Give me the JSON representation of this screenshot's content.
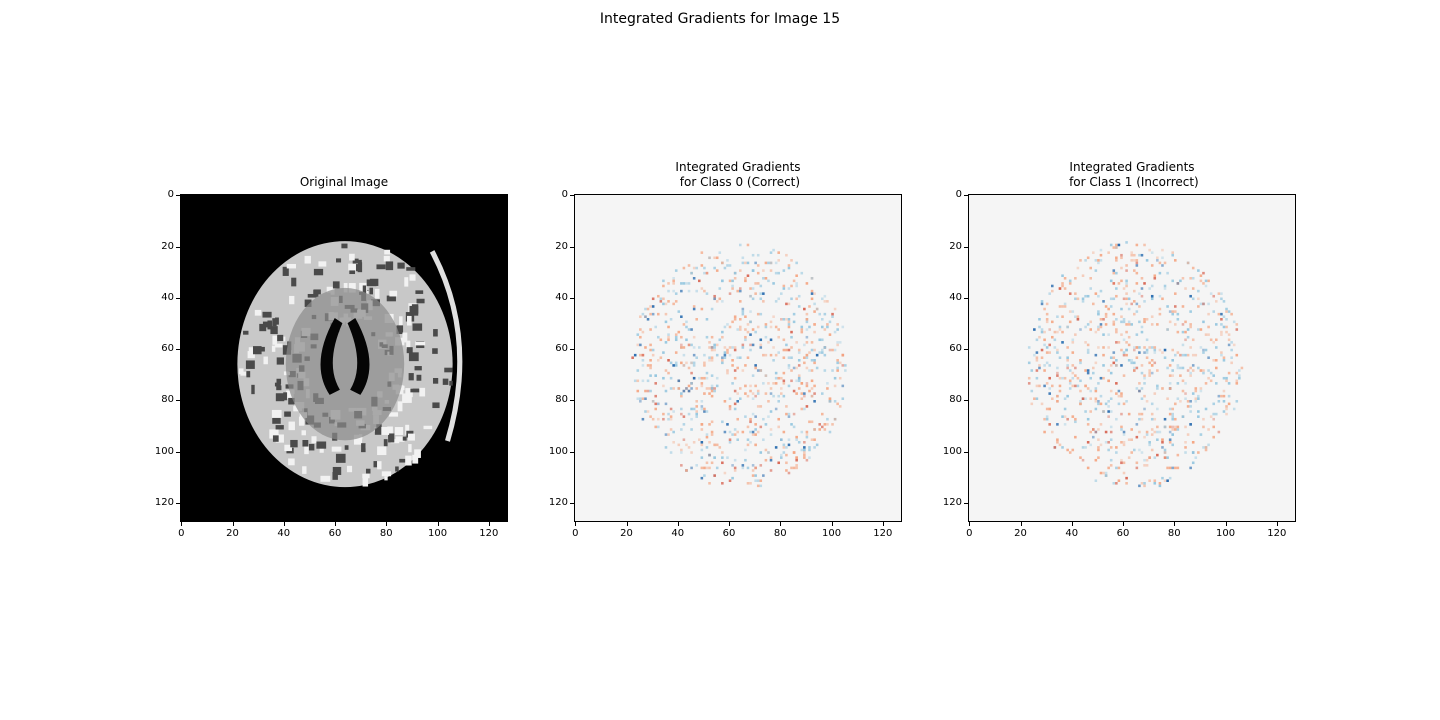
{
  "suptitle": "Integrated Gradients for Image 15",
  "chart_data": [
    {
      "type": "heatmap",
      "title": "Original Image",
      "colormap": "gray",
      "xlim": [
        0,
        127
      ],
      "ylim": [
        127,
        0
      ],
      "xticks": [
        "0",
        "20",
        "40",
        "60",
        "80",
        "100",
        "120"
      ],
      "yticks": [
        "0",
        "20",
        "40",
        "60",
        "80",
        "100",
        "120"
      ]
    },
    {
      "type": "heatmap",
      "title": "Integrated Gradients\n for Class 0 (Correct)",
      "colormap": "RdBu",
      "xlim": [
        0,
        127
      ],
      "ylim": [
        127,
        0
      ],
      "xticks": [
        "0",
        "20",
        "40",
        "60",
        "80",
        "100",
        "120"
      ],
      "yticks": [
        "0",
        "20",
        "40",
        "60",
        "80",
        "100",
        "120"
      ]
    },
    {
      "type": "heatmap",
      "title": "Integrated Gradients\n for Class 1 (Incorrect)",
      "colormap": "RdBu",
      "xlim": [
        0,
        127
      ],
      "ylim": [
        127,
        0
      ],
      "xticks": [
        "0",
        "20",
        "40",
        "60",
        "80",
        "100",
        "120"
      ],
      "yticks": [
        "0",
        "20",
        "40",
        "60",
        "80",
        "100",
        "120"
      ]
    }
  ],
  "colors": {
    "background_mri": "#000000",
    "background_ig": "#f5f5f5",
    "positive": "#f4a582",
    "negative": "#2166ac"
  }
}
